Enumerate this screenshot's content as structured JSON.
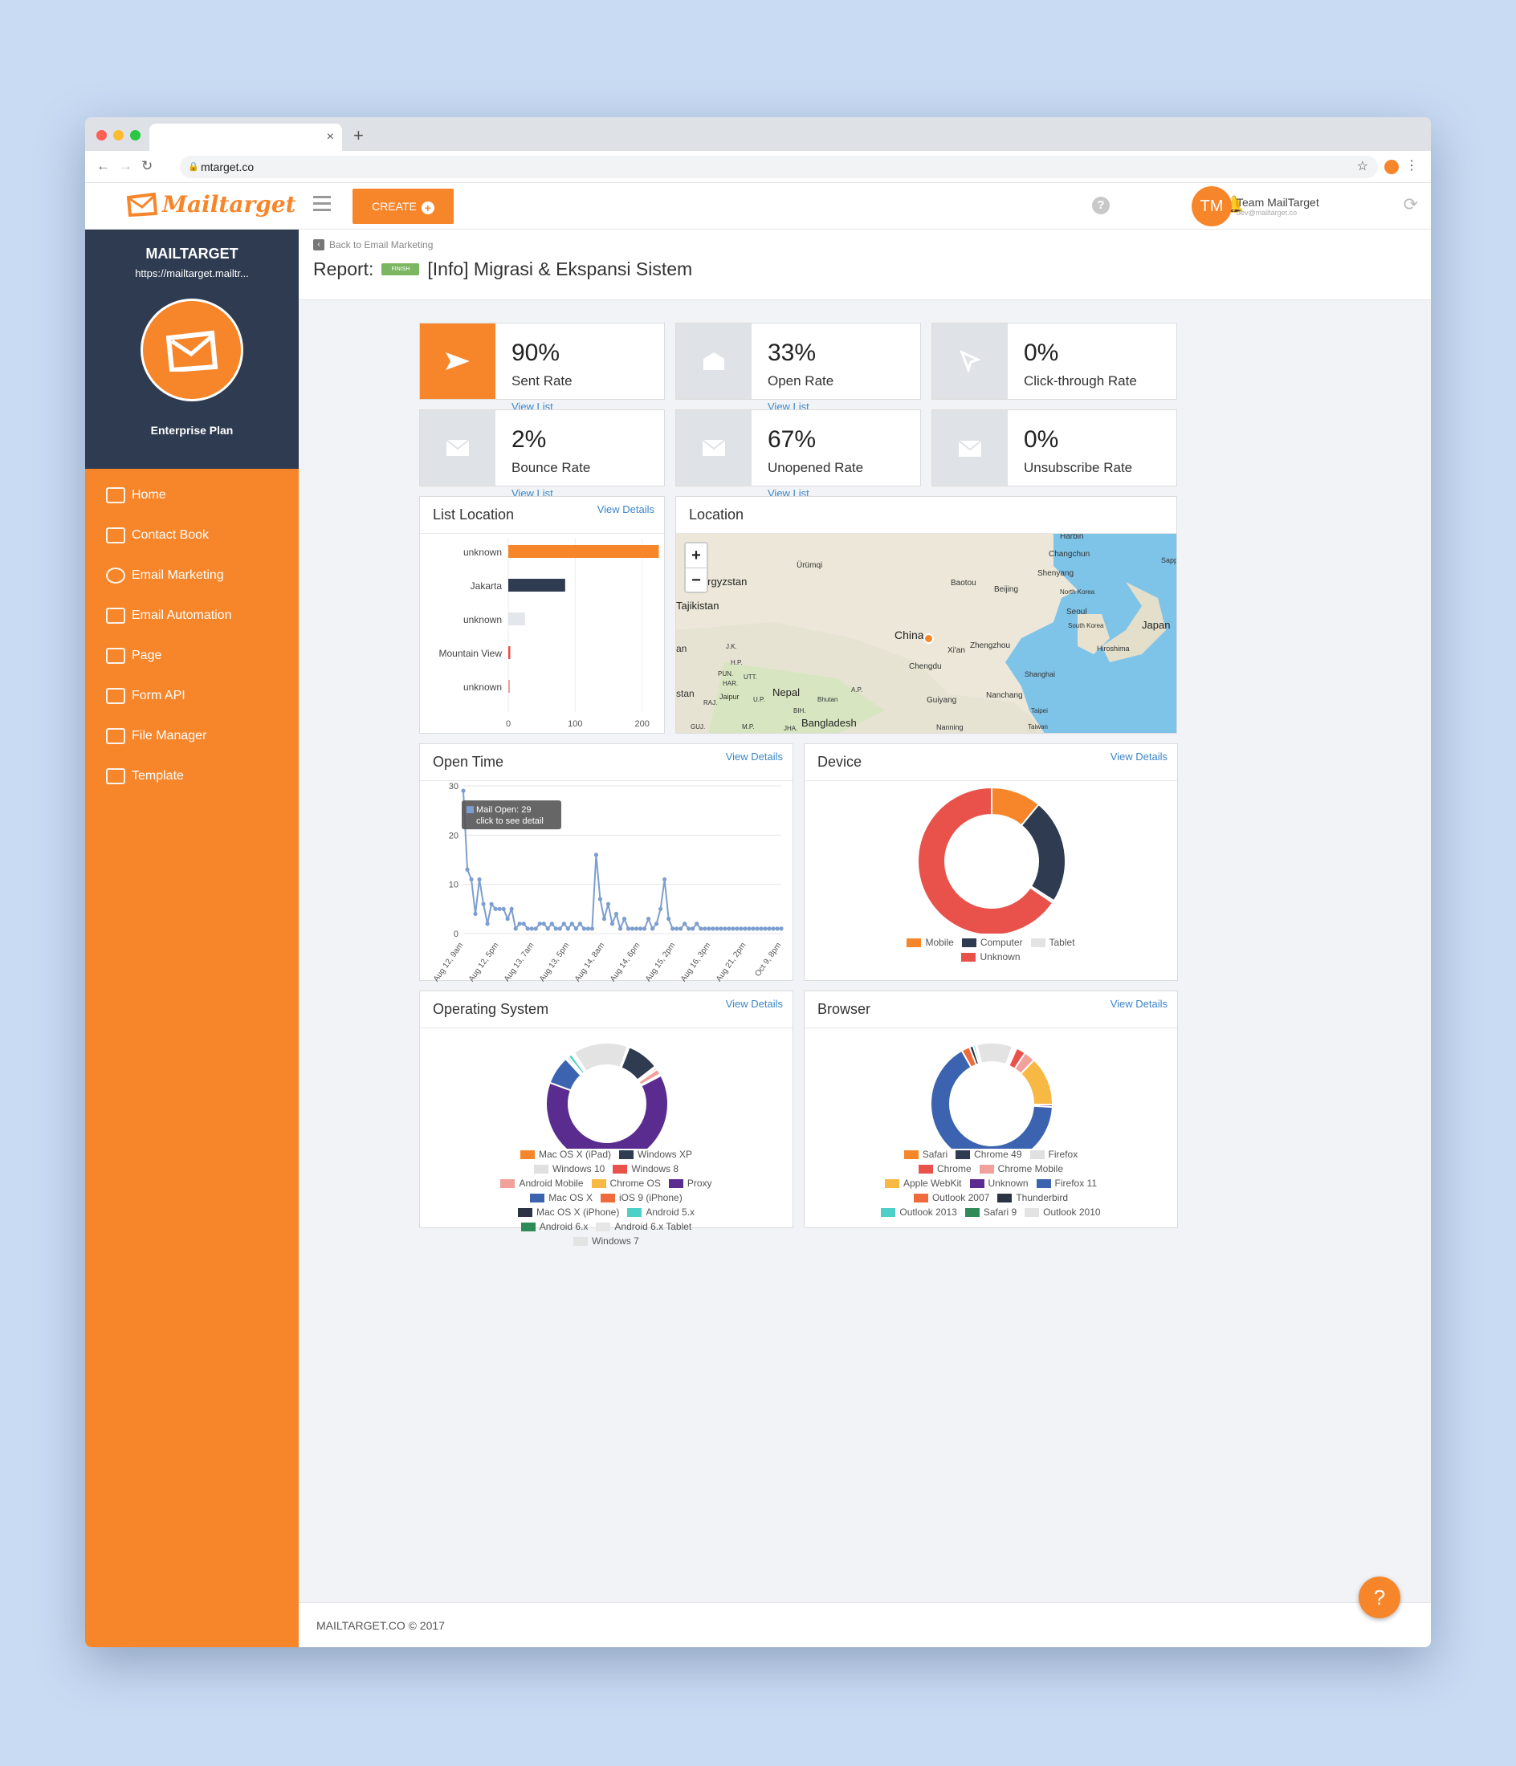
{
  "browser": {
    "url": "mtarget.co",
    "tab_close": "×",
    "new_tab": "+"
  },
  "header": {
    "logo_text": "Mailtarget",
    "create_label": "CREATE",
    "avatar_initials": "TM",
    "user_name": "Team MailTarget",
    "user_email": "dev@mailtarget.co",
    "help_icon": "?"
  },
  "sidebar": {
    "title": "MAILTARGET",
    "url": "https://mailtarget.mailtr...",
    "plan": "Enterprise Plan",
    "items": [
      {
        "label": "Home",
        "icon": "home-icon"
      },
      {
        "label": "Contact Book",
        "icon": "contact-book-icon"
      },
      {
        "label": "Email Marketing",
        "icon": "at-icon"
      },
      {
        "label": "Email Automation",
        "icon": "automation-icon"
      },
      {
        "label": "Page",
        "icon": "page-icon"
      },
      {
        "label": "Form API",
        "icon": "form-icon"
      },
      {
        "label": "File Manager",
        "icon": "file-manager-icon"
      },
      {
        "label": "Template",
        "icon": "template-icon"
      }
    ]
  },
  "page": {
    "back_link": "Back to Email Marketing",
    "report_prefix": "Report:",
    "status_badge": "FINISH",
    "campaign_title": "[Info] Migrasi & Ekspansi Sistem"
  },
  "stats": [
    {
      "value": "90%",
      "label": "Sent Rate",
      "link": "View List",
      "icon": "paper-plane-icon"
    },
    {
      "value": "33%",
      "label": "Open Rate",
      "link": "View List",
      "icon": "open-envelope-icon"
    },
    {
      "value": "0%",
      "label": "Click-through Rate",
      "link": "",
      "icon": "cursor-icon"
    },
    {
      "value": "2%",
      "label": "Bounce Rate",
      "link": "View List",
      "icon": "bounce-envelope-icon"
    },
    {
      "value": "67%",
      "label": "Unopened Rate",
      "link": "View List",
      "icon": "closed-envelope-icon"
    },
    {
      "value": "0%",
      "label": "Unsubscribe Rate",
      "link": "",
      "icon": "unsubscribe-envelope-icon"
    }
  ],
  "cards": {
    "list_location": "List Location",
    "location": "Location",
    "open_time": "Open Time",
    "device": "Device",
    "os": "Operating System",
    "browser": "Browser",
    "view_details": "View Details"
  },
  "map": {
    "zoom_in": "+",
    "zoom_out": "−",
    "labels": [
      "Harbin",
      "Changchun",
      "Shenyang",
      "North Korea",
      "Seoul",
      "South Korea",
      "Japan",
      "Hiroshima",
      "Ürümqi",
      "Kyrgyzstan",
      "Tajikistan",
      "Baotou",
      "Beijing",
      "China",
      "Xi'an",
      "Zhengzhou",
      "Chengdu",
      "Shanghai",
      "Nanchang",
      "Guiyang",
      "Nepal",
      "Bhutan",
      "Bangladesh",
      "Taipei",
      "Taiwan",
      "Nanning",
      "J.K.",
      "H.P.",
      "PUN.",
      "HAR.",
      "UTT.",
      "RAJ.",
      "Jaipur",
      "U.P.",
      "BIH.",
      "JHA.",
      "M.P.",
      "GUJ.",
      "A.P.",
      "an",
      "stan",
      "Sapp"
    ]
  },
  "footer": {
    "copyright": "MAILTARGET.CO © 2017",
    "help": "?"
  },
  "colors": {
    "orange": "#f7862b",
    "navy": "#2e3b51",
    "red": "#e8524a",
    "link": "#3b86c9"
  },
  "chart_data": [
    {
      "type": "bar",
      "orientation": "horizontal",
      "title": "List Location",
      "categories": [
        "unknown",
        "Jakarta",
        "unknown",
        "Mountain View",
        "unknown"
      ],
      "values": [
        225,
        85,
        25,
        3,
        1
      ],
      "colors": [
        "#f7862b",
        "#2e3b51",
        "#e3e6ea",
        "#e8524a",
        "#f2a09a"
      ],
      "xlim": [
        0,
        300
      ],
      "xticks": [
        0,
        100,
        200,
        300
      ]
    },
    {
      "type": "line",
      "title": "Open Time",
      "ylim": [
        0,
        30
      ],
      "yticks": [
        0,
        10,
        20,
        30
      ],
      "xtick_labels": [
        "Aug 12, 9am",
        "Aug 12, 5pm",
        "Aug 13, 7am",
        "Aug 13, 5pm",
        "Aug 14, 8am",
        "Aug 14, 6pm",
        "Aug 15, 2pm",
        "Aug 16, 3pm",
        "Aug 21, 2pm",
        "Oct 9, 8pm"
      ],
      "values": [
        29,
        13,
        11,
        4,
        11,
        6,
        2,
        6,
        5,
        5,
        5,
        3,
        5,
        1,
        2,
        2,
        1,
        1,
        1,
        2,
        2,
        1,
        2,
        1,
        1,
        2,
        1,
        2,
        1,
        2,
        1,
        1,
        1,
        16,
        7,
        3,
        6,
        2,
        4,
        1,
        3,
        1,
        1,
        1,
        1,
        1,
        3,
        1,
        2,
        5,
        11,
        3,
        1,
        1,
        1,
        2,
        1,
        1,
        2,
        1,
        1,
        1,
        1,
        1,
        1,
        1,
        1,
        1,
        1,
        1,
        1,
        1,
        1,
        1,
        1,
        1,
        1,
        1,
        1,
        1
      ],
      "tooltip_line1": "Mail Open: 29",
      "tooltip_line2": "click to see detail"
    },
    {
      "type": "pie",
      "donut": true,
      "title": "Device",
      "labels": [
        "Mobile",
        "Computer",
        "Tablet",
        "Unknown"
      ],
      "values": [
        11,
        23,
        0.5,
        65.5
      ],
      "colors": [
        "#f7862b",
        "#2e3b51",
        "#e3e3e3",
        "#e8524a"
      ]
    },
    {
      "type": "pie",
      "donut": true,
      "title": "Operating System",
      "labels": [
        "Mac OS X (iPad)",
        "Windows XP",
        "Windows 10",
        "Windows 8",
        "Android Mobile",
        "Chrome OS",
        "Proxy",
        "Mac OS X",
        "iOS 9 (iPhone)",
        "Mac OS X (iPhone)",
        "Android 5.x",
        "Android 6.x",
        "Android 6.x Tablet",
        "Windows 7"
      ],
      "values": [
        0.4,
        8.5,
        0.4,
        0.5,
        1.5,
        0.4,
        63,
        7.5,
        0.4,
        0.5,
        1.0,
        0.4,
        0.4,
        14.6
      ],
      "colors": [
        "#f7862b",
        "#2e3b51",
        "#e0e0e0",
        "#e8524a",
        "#f2a09a",
        "#f7b844",
        "#5b2c8f",
        "#3b63b0",
        "#f06b3c",
        "#2a3445",
        "#4dd0c8",
        "#2e8b57",
        "#e6e6e6",
        "#e3e3e3"
      ]
    },
    {
      "type": "pie",
      "donut": true,
      "title": "Browser",
      "labels": [
        "Safari",
        "Chrome 49",
        "Firefox",
        "Chrome",
        "Chrome Mobile",
        "Apple WebKit",
        "Unknown",
        "Firefox 11",
        "Outlook 2007",
        "Thunderbird",
        "Outlook 2013",
        "Safari 9",
        "Outlook 2010"
      ],
      "values": [
        0.4,
        0.4,
        0.4,
        2.5,
        3,
        13,
        0.6,
        66,
        2.2,
        1.0,
        0.6,
        0.4,
        9.5
      ],
      "colors": [
        "#f7862b",
        "#2e3b51",
        "#e0e0e0",
        "#e8524a",
        "#f2a09a",
        "#f7b844",
        "#5b2c8f",
        "#3b63b0",
        "#f06b3c",
        "#2a3445",
        "#4dd0c8",
        "#2e8b57",
        "#e3e3e3"
      ]
    }
  ]
}
